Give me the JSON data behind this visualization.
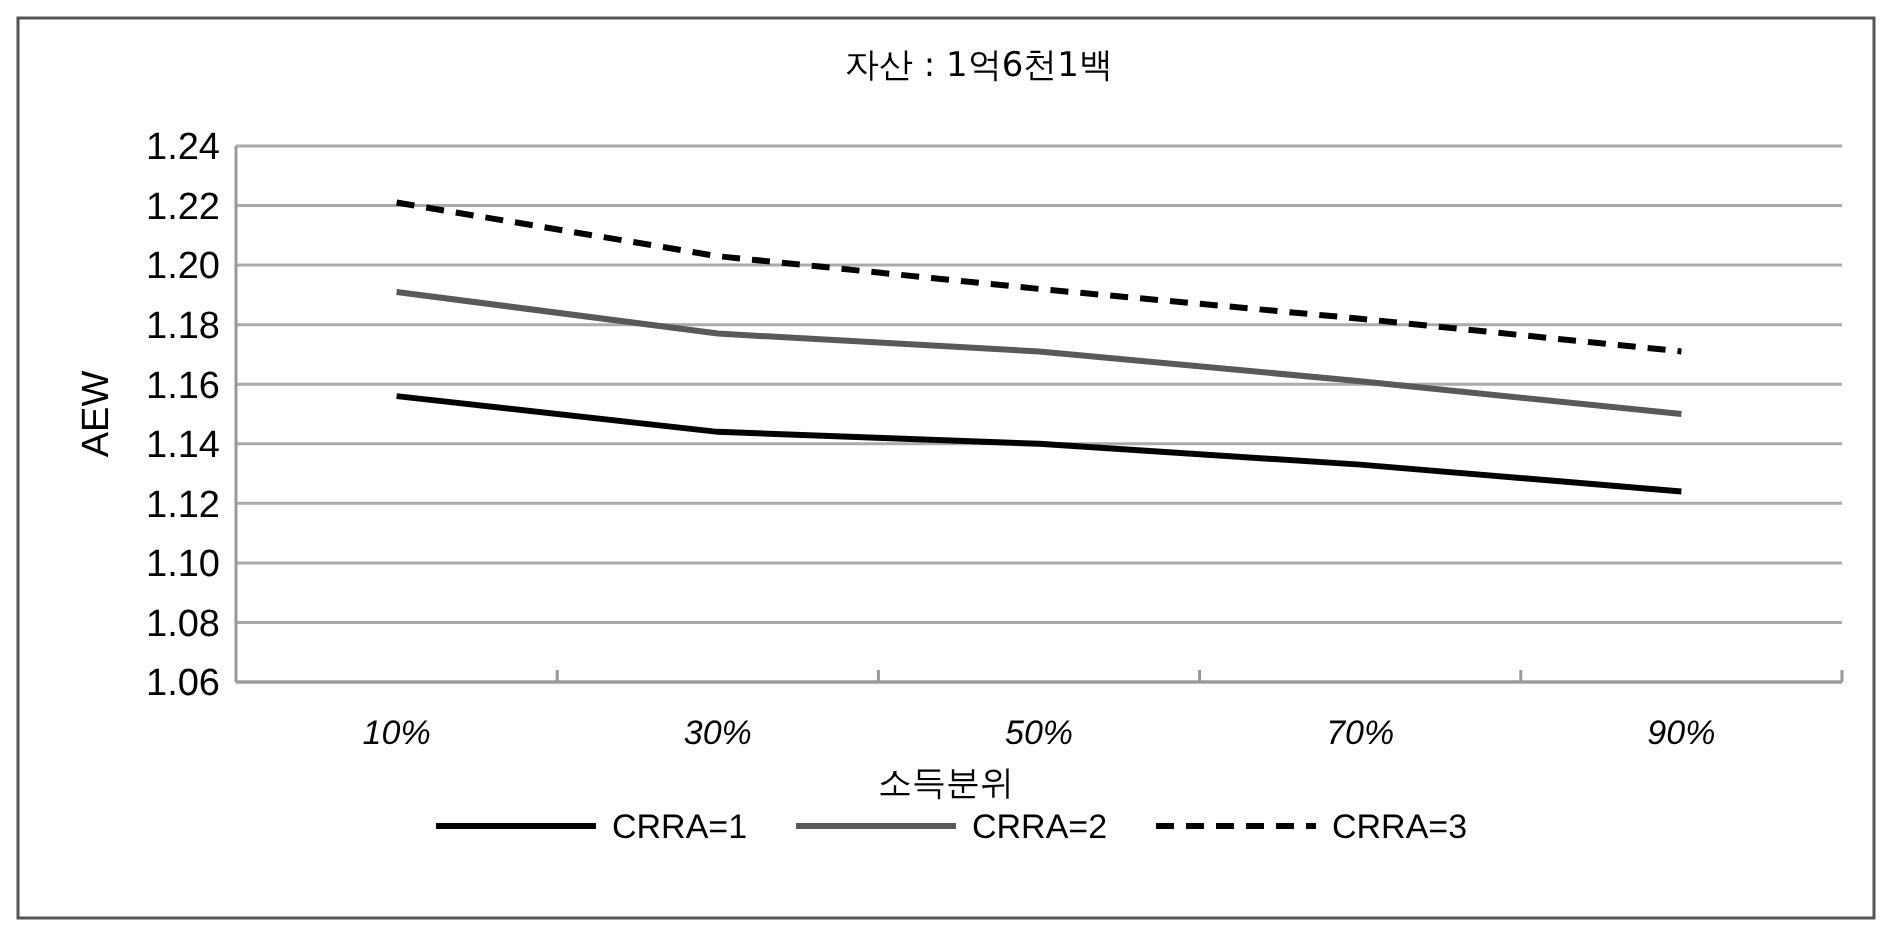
{
  "chart_data": {
    "type": "line",
    "title": "자산 : 1억6천1백",
    "xlabel": "소득분위",
    "ylabel": "AEW",
    "categories": [
      "10%",
      "30%",
      "50%",
      "70%",
      "90%"
    ],
    "series": [
      {
        "name": "CRRA=1",
        "color": "#000000",
        "line_style": "solid",
        "values": [
          1.156,
          1.144,
          1.14,
          1.133,
          1.124
        ]
      },
      {
        "name": "CRRA=2",
        "color": "#595959",
        "line_style": "solid",
        "values": [
          1.191,
          1.177,
          1.171,
          1.161,
          1.15
        ]
      },
      {
        "name": "CRRA=3",
        "color": "#000000",
        "line_style": "dashed",
        "values": [
          1.221,
          1.203,
          1.192,
          1.182,
          1.171
        ]
      }
    ],
    "ylim": [
      1.06,
      1.24
    ],
    "yticks": [
      {
        "value": 1.06,
        "label": "1.06"
      },
      {
        "value": 1.08,
        "label": "1.08"
      },
      {
        "value": 1.1,
        "label": "1.10"
      },
      {
        "value": 1.12,
        "label": "1.12"
      },
      {
        "value": 1.14,
        "label": "1.14"
      },
      {
        "value": 1.16,
        "label": "1.16"
      },
      {
        "value": 1.18,
        "label": "1.18"
      },
      {
        "value": 1.2,
        "label": "1.20"
      },
      {
        "value": 1.22,
        "label": "1.22"
      },
      {
        "value": 1.24,
        "label": "1.24"
      }
    ],
    "grid": "y",
    "legend": "bottom",
    "marker": "none"
  }
}
